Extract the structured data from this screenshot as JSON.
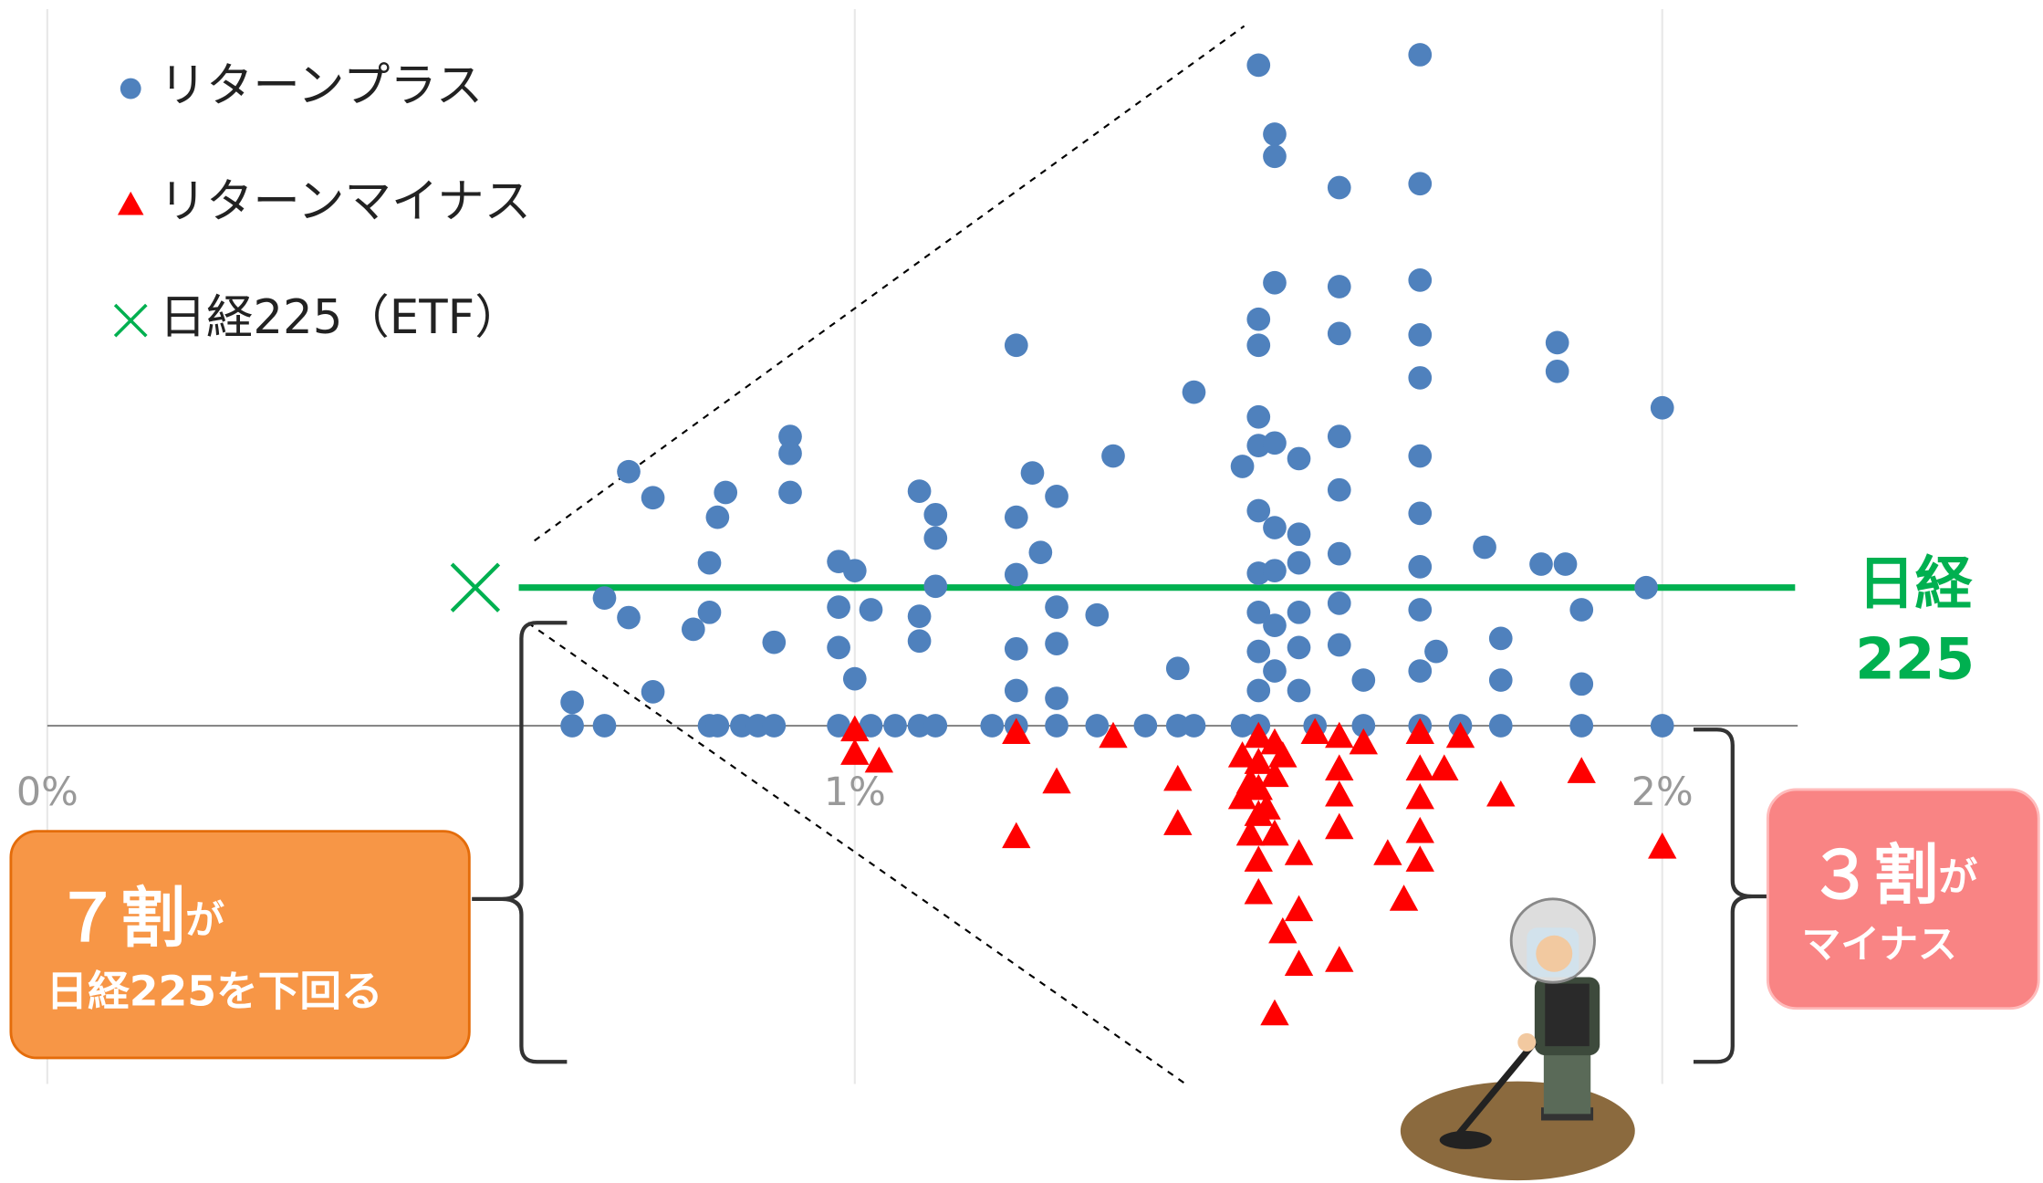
{
  "chart_data": {
    "type": "scatter",
    "xlim": [
      0,
      2.2
    ],
    "ylim": [
      -2.75,
      5.5
    ],
    "xticks": [
      {
        "value": 0,
        "label": "0%"
      },
      {
        "value": 1,
        "label": "1%"
      },
      {
        "value": 2,
        "label": "2%"
      }
    ],
    "grid": true,
    "legend": "top-left",
    "series": [
      {
        "name": "リターンプラス",
        "color": "#4f81bd",
        "marker": "circle",
        "x": [
          0.65,
          0.69,
          0.82,
          0.83,
          0.86,
          0.88,
          0.9,
          0.98,
          1.02,
          1.05,
          1.08,
          1.1,
          1.17,
          1.2,
          1.25,
          1.3,
          1.36,
          1.4,
          1.42,
          1.48,
          1.5,
          1.57,
          1.63,
          1.7,
          1.75,
          1.8,
          1.9,
          2.0,
          0.65,
          0.69,
          0.72,
          0.72,
          0.75,
          0.75,
          0.8,
          0.82,
          0.82,
          0.83,
          0.84,
          0.9,
          0.92,
          0.92,
          0.92,
          0.98,
          0.98,
          0.98,
          1.0,
          1.0,
          1.02,
          1.08,
          1.08,
          1.08,
          1.1,
          1.1,
          1.1,
          1.2,
          1.2,
          1.2,
          1.2,
          1.2,
          1.22,
          1.23,
          1.25,
          1.25,
          1.25,
          1.25,
          1.3,
          1.32,
          1.4,
          1.42,
          1.48,
          1.5,
          1.5,
          1.5,
          1.5,
          1.5,
          1.5,
          1.5,
          1.5,
          1.5,
          1.5,
          1.52,
          1.52,
          1.52,
          1.52,
          1.52,
          1.52,
          1.52,
          1.52,
          1.55,
          1.55,
          1.55,
          1.55,
          1.55,
          1.55,
          1.6,
          1.6,
          1.6,
          1.6,
          1.6,
          1.6,
          1.6,
          1.6,
          1.63,
          1.7,
          1.7,
          1.7,
          1.7,
          1.7,
          1.7,
          1.7,
          1.7,
          1.7,
          1.7,
          1.72,
          1.78,
          1.8,
          1.8,
          1.85,
          1.87,
          1.87,
          1.88,
          1.9,
          1.9,
          1.98,
          2.0
        ],
        "values": [
          0,
          0,
          0,
          0,
          0,
          0,
          0,
          0,
          0,
          0,
          0,
          0,
          0,
          0,
          0,
          0,
          0,
          0,
          0,
          0,
          0,
          0,
          0,
          0,
          0,
          0,
          0,
          0,
          0.18,
          0.98,
          1.95,
          0.83,
          1.75,
          0.26,
          0.74,
          1.25,
          0.87,
          1.6,
          1.79,
          0.64,
          2.22,
          2.09,
          1.79,
          1.26,
          0.91,
          0.6,
          1.19,
          0.36,
          0.89,
          1.8,
          0.84,
          0.65,
          1.62,
          1.44,
          1.07,
          2.92,
          1.6,
          1.16,
          0.59,
          0.27,
          1.94,
          1.33,
          1.76,
          0.91,
          0.63,
          0.21,
          0.85,
          2.07,
          0.44,
          2.56,
          1.99,
          5.07,
          3.12,
          2.92,
          2.37,
          2.15,
          1.65,
          1.17,
          0.87,
          0.57,
          0.27,
          4.54,
          4.37,
          3.4,
          2.17,
          1.52,
          1.19,
          0.77,
          0.42,
          2.05,
          1.47,
          1.25,
          0.87,
          0.6,
          0.27,
          4.13,
          3.37,
          3.01,
          2.22,
          1.81,
          1.32,
          0.94,
          0.62,
          0.35,
          5.15,
          4.16,
          3.42,
          3.0,
          2.67,
          2.07,
          1.63,
          1.22,
          0.89,
          0.42,
          0.57,
          1.37,
          0.67,
          0.35,
          1.24,
          2.94,
          2.72,
          1.24,
          0.89,
          0.32,
          1.06,
          2.44
        ]
      },
      {
        "name": "リターンマイナス",
        "color": "#ff0000",
        "marker": "triangle",
        "x": [
          1.0,
          1.0,
          1.03,
          1.2,
          1.2,
          1.25,
          1.32,
          1.4,
          1.4,
          1.48,
          1.5,
          1.5,
          1.5,
          1.5,
          1.5,
          1.5,
          1.52,
          1.52,
          1.52,
          1.52,
          1.53,
          1.55,
          1.55,
          1.55,
          1.53,
          1.57,
          1.6,
          1.6,
          1.6,
          1.6,
          1.6,
          1.63,
          1.66,
          1.68,
          1.7,
          1.7,
          1.7,
          1.7,
          1.7,
          1.73,
          1.75,
          1.8,
          1.9,
          2.0,
          1.48,
          1.49,
          1.51,
          1.49
        ],
        "values": [
          -0.03,
          -0.21,
          -0.27,
          -0.05,
          -0.85,
          -0.43,
          -0.08,
          -0.41,
          -0.75,
          -0.55,
          -0.08,
          -0.28,
          -0.48,
          -0.68,
          -1.03,
          -1.28,
          -2.21,
          -0.13,
          -0.38,
          -0.83,
          -1.58,
          -1.41,
          -1.83,
          -0.98,
          -0.23,
          -0.05,
          -0.08,
          -0.33,
          -0.53,
          -0.78,
          -1.8,
          -0.13,
          -0.98,
          -1.33,
          -0.05,
          -0.33,
          -0.55,
          -0.81,
          -1.03,
          -0.33,
          -0.08,
          -0.53,
          -0.35,
          -0.93,
          -0.23,
          -0.43,
          -0.63,
          -0.83
        ]
      },
      {
        "name": "日経225（ETF）",
        "color": "#00b050",
        "marker": "x",
        "x": [
          0.53
        ],
        "values": [
          1.06
        ]
      }
    ],
    "reference_line": {
      "value": 1.06,
      "color": "#00b050",
      "label": [
        "日経",
        "225"
      ]
    },
    "annotations": [
      {
        "big": "７割",
        "small": "が",
        "text": "日経225を下回る",
        "color": "#f79646"
      },
      {
        "big": "３割",
        "small": "が",
        "text": "マイナス",
        "color": "#f98484"
      }
    ]
  }
}
